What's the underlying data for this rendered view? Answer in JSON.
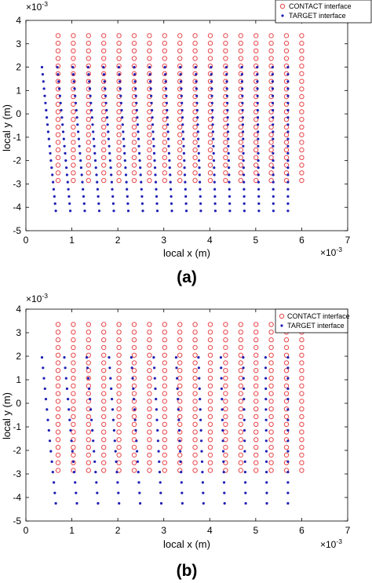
{
  "chart_data": [
    {
      "type": "scatter",
      "panel_label": "(a)",
      "xlabel": "local x (m)",
      "ylabel": "local y (m)",
      "x_exponent": "×10",
      "x_exponent_power": "-3",
      "y_exponent": "×10",
      "y_exponent_power": "-3",
      "xlim": [
        0,
        7
      ],
      "ylim": [
        -5,
        4
      ],
      "x_ticks": [
        "0",
        "1",
        "2",
        "3",
        "4",
        "5",
        "6",
        "7"
      ],
      "y_ticks": [
        "-5",
        "-4",
        "-3",
        "-2",
        "-1",
        "0",
        "1",
        "2",
        "3",
        "4"
      ],
      "legend_position": "top-right",
      "series": [
        {
          "name": "CONTACT interface",
          "marker": "open-circle",
          "color": "#e8474b",
          "grid": {
            "x_start": 0.7,
            "x_end": 6.0,
            "cols": 17,
            "y_top": 3.35,
            "y_bottom": -2.85,
            "rows": 20
          }
        },
        {
          "name": "TARGET interface",
          "marker": "dot",
          "color": "#1f1fb4",
          "grid": {
            "x_left_top": 0.35,
            "x_left_bottom": 0.65,
            "x_right": 5.7,
            "cols": 17,
            "y_top": 2.0,
            "y_bottom": -4.15,
            "rows": 21
          }
        }
      ]
    },
    {
      "type": "scatter",
      "panel_label": "(b)",
      "xlabel": "local x (m)",
      "ylabel": "local y (m)",
      "x_exponent": "×10",
      "x_exponent_power": "-3",
      "y_exponent": "×10",
      "y_exponent_power": "-3",
      "xlim": [
        0,
        7
      ],
      "ylim": [
        -5,
        4
      ],
      "x_ticks": [
        "0",
        "1",
        "2",
        "3",
        "4",
        "5",
        "6",
        "7"
      ],
      "y_ticks": [
        "-5",
        "-4",
        "-3",
        "-2",
        "-1",
        "0",
        "1",
        "2",
        "3",
        "4"
      ],
      "legend_position": "top-right",
      "series": [
        {
          "name": "CONTACT interface",
          "marker": "open-circle",
          "color": "#e8474b",
          "grid": {
            "x_start": 0.7,
            "x_end": 6.0,
            "cols": 17,
            "y_top": 3.35,
            "y_bottom": -2.85,
            "rows": 20
          }
        },
        {
          "name": "TARGET interface",
          "marker": "dot",
          "color": "#1f1fb4",
          "grid": {
            "x_left_top": 0.35,
            "x_left_bottom": 0.65,
            "x_right": 5.7,
            "cols": 12,
            "y_top": 1.95,
            "y_bottom": -4.25,
            "rows": 15
          }
        }
      ]
    }
  ]
}
